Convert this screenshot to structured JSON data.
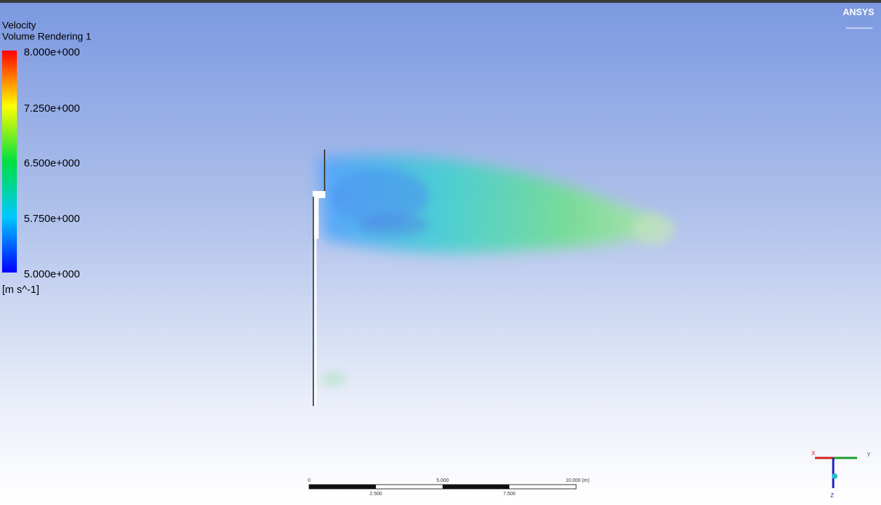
{
  "legend": {
    "title": "Velocity",
    "subtitle": "Volume Rendering 1",
    "labels": [
      "8.000e+000",
      "7.250e+000",
      "6.500e+000",
      "5.750e+000",
      "5.000e+000"
    ],
    "unit": "[m s^-1]"
  },
  "logo": "ANSYS",
  "scale_bar": {
    "top_labels": [
      "0",
      "5.000",
      "10.000 (m)"
    ],
    "bottom_labels": [
      "2.500",
      "7.500"
    ]
  },
  "axis_triad": {
    "labels": [
      "X",
      "Y",
      "Z"
    ]
  }
}
